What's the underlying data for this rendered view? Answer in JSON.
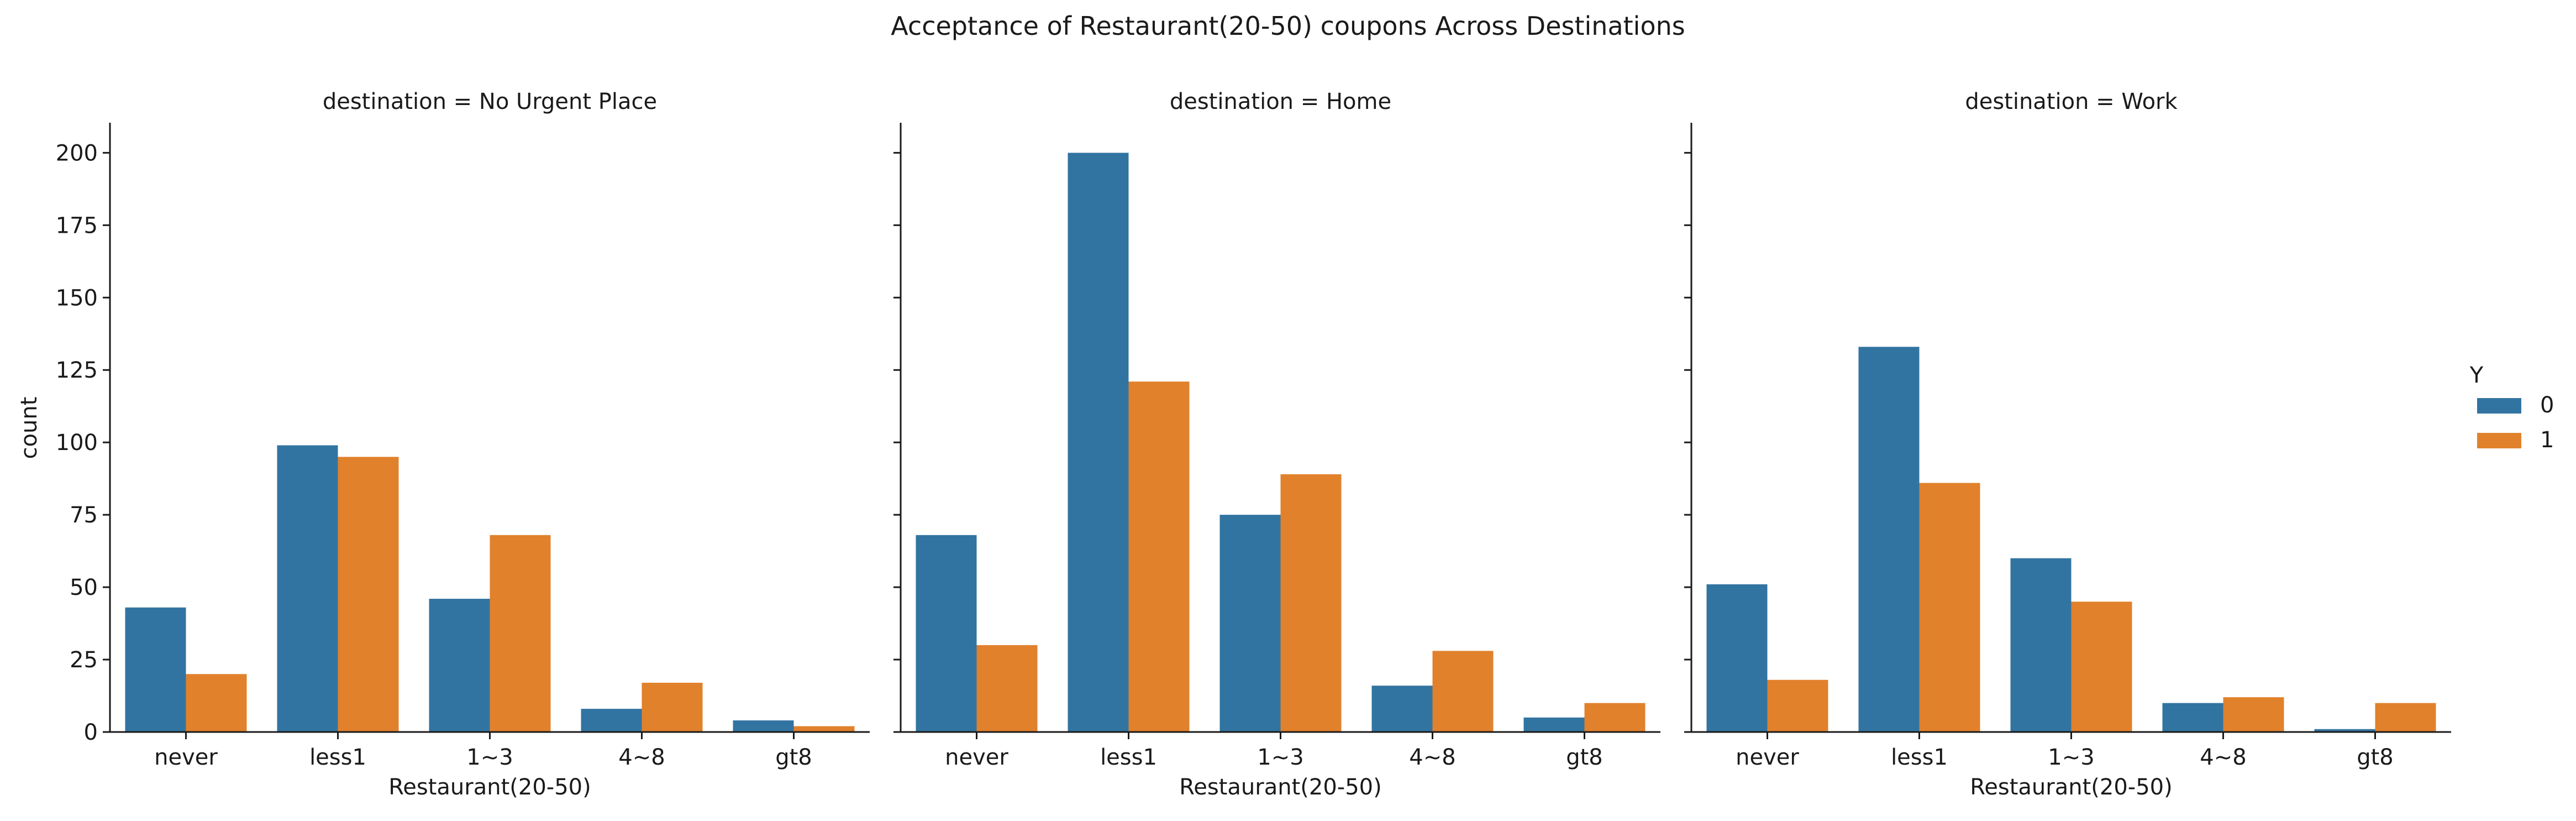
{
  "chart_data": {
    "type": "bar",
    "title": "Acceptance of Restaurant(20-50) coupons Across Destinations",
    "xlabel": "Restaurant(20-50)",
    "ylabel": "count",
    "categories": [
      "never",
      "less1",
      "1~3",
      "4~8",
      "gt8"
    ],
    "ylim": [
      0,
      210
    ],
    "yticks": [
      0,
      25,
      50,
      75,
      100,
      125,
      150,
      175,
      200
    ],
    "grid": false,
    "legend": {
      "title": "Y",
      "placement": "right",
      "entries": [
        {
          "label": "0",
          "color": "#3274a1"
        },
        {
          "label": "1",
          "color": "#e1812c"
        }
      ]
    },
    "facets": [
      {
        "title": "destination = No Urgent Place",
        "series": [
          {
            "name": "0",
            "values": [
              43,
              99,
              46,
              8,
              4
            ]
          },
          {
            "name": "1",
            "values": [
              20,
              95,
              68,
              17,
              2
            ]
          }
        ]
      },
      {
        "title": "destination = Home",
        "series": [
          {
            "name": "0",
            "values": [
              68,
              200,
              75,
              16,
              5
            ]
          },
          {
            "name": "1",
            "values": [
              30,
              121,
              89,
              28,
              10
            ]
          }
        ]
      },
      {
        "title": "destination = Work",
        "series": [
          {
            "name": "0",
            "values": [
              51,
              133,
              60,
              10,
              1
            ]
          },
          {
            "name": "1",
            "values": [
              18,
              86,
              45,
              12,
              10
            ]
          }
        ]
      }
    ]
  }
}
